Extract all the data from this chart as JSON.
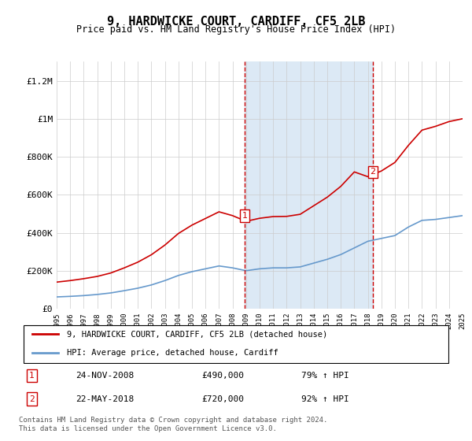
{
  "title": "9, HARDWICKE COURT, CARDIFF, CF5 2LB",
  "subtitle": "Price paid vs. HM Land Registry's House Price Index (HPI)",
  "legend_line1": "9, HARDWICKE COURT, CARDIFF, CF5 2LB (detached house)",
  "legend_line2": "HPI: Average price, detached house, Cardiff",
  "annotation1_label": "1",
  "annotation1_date": "24-NOV-2008",
  "annotation1_price": "£490,000",
  "annotation1_hpi": "79% ↑ HPI",
  "annotation2_label": "2",
  "annotation2_date": "22-MAY-2018",
  "annotation2_price": "£720,000",
  "annotation2_hpi": "92% ↑ HPI",
  "footer": "Contains HM Land Registry data © Crown copyright and database right 2024.\nThis data is licensed under the Open Government Licence v3.0.",
  "red_color": "#cc0000",
  "blue_color": "#6699cc",
  "shaded_color": "#dce9f5",
  "annotation_box_color": "#cc0000",
  "ylim_max": 1300000,
  "yticks": [
    0,
    200000,
    400000,
    600000,
    800000,
    1000000,
    1200000
  ],
  "ytick_labels": [
    "£0",
    "£200K",
    "£400K",
    "£600K",
    "£800K",
    "£1M",
    "£1.2M"
  ],
  "hpi_data": {
    "years": [
      1995,
      1996,
      1997,
      1998,
      1999,
      2000,
      2001,
      2002,
      2003,
      2004,
      2005,
      2006,
      2007,
      2008,
      2009,
      2010,
      2011,
      2012,
      2013,
      2014,
      2015,
      2016,
      2017,
      2018,
      2019,
      2020,
      2021,
      2022,
      2023,
      2024,
      2025
    ],
    "values": [
      62000,
      65000,
      69000,
      75000,
      83000,
      95000,
      108000,
      125000,
      148000,
      175000,
      195000,
      210000,
      225000,
      215000,
      200000,
      210000,
      215000,
      215000,
      220000,
      240000,
      260000,
      285000,
      320000,
      355000,
      370000,
      385000,
      430000,
      465000,
      470000,
      480000,
      490000
    ]
  },
  "red_data": {
    "years": [
      1995,
      1996,
      1997,
      1998,
      1999,
      2000,
      2001,
      2002,
      2003,
      2004,
      2005,
      2006,
      2007,
      2008,
      2009,
      2010,
      2011,
      2012,
      2013,
      2014,
      2015,
      2016,
      2017,
      2018,
      2019,
      2020,
      2021,
      2022,
      2023,
      2024,
      2025
    ],
    "values": [
      140000,
      148000,
      158000,
      170000,
      188000,
      215000,
      245000,
      284000,
      335000,
      396000,
      440000,
      475000,
      510000,
      490000,
      460000,
      476000,
      485000,
      486000,
      497000,
      542000,
      587000,
      644000,
      720000,
      695000,
      725000,
      770000,
      860000,
      940000,
      960000,
      985000,
      1000000
    ],
    "sale_dates": [
      2008.9,
      2018.38
    ],
    "sale_prices": [
      490000,
      720000
    ]
  },
  "xmin": 1995,
  "xmax": 2025,
  "shade_start": 2008.9,
  "shade_end": 2018.38
}
